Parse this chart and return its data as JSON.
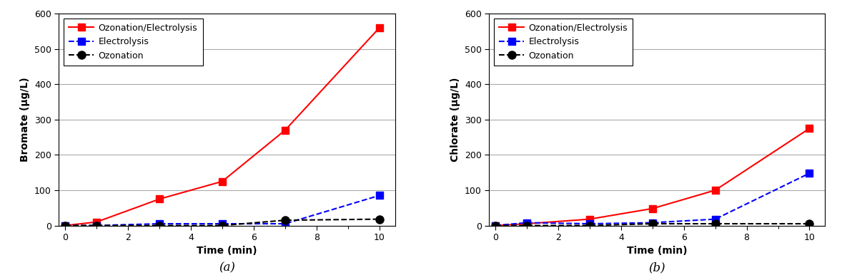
{
  "time": [
    0,
    1,
    3,
    5,
    7,
    10
  ],
  "bromate": {
    "ozonation_electrolysis": [
      0,
      10,
      75,
      125,
      270,
      560
    ],
    "electrolysis": [
      0,
      0,
      5,
      5,
      5,
      85
    ],
    "ozonation": [
      0,
      0,
      0,
      0,
      15,
      18
    ]
  },
  "chlorate": {
    "ozonation_electrolysis": [
      0,
      5,
      18,
      48,
      100,
      275
    ],
    "electrolysis": [
      0,
      8,
      5,
      8,
      18,
      148
    ],
    "ozonation": [
      0,
      0,
      0,
      5,
      5,
      5
    ]
  },
  "legend_labels": [
    "Ozonation/Electrolysis",
    "Electrolysis",
    "Ozonation"
  ],
  "ylabel_a": "Bromate (μg/L)",
  "ylabel_b": "Chlorate (μg/L)",
  "xlabel": "Time (min)",
  "ylim": [
    0,
    600
  ],
  "yticks": [
    0,
    100,
    200,
    300,
    400,
    500,
    600
  ],
  "xlim": [
    -0.2,
    10.5
  ],
  "xticks": [
    0,
    2,
    4,
    6,
    8,
    10
  ],
  "label_a": "(a)",
  "label_b": "(b)",
  "line_colors": [
    "red",
    "blue",
    "black"
  ],
  "line_styles": [
    "-",
    "--",
    "--"
  ],
  "markers": [
    "s",
    "s",
    "o"
  ],
  "marker_sizes": [
    7,
    7,
    8
  ],
  "marker_edge_colors": [
    "red",
    "blue",
    "black"
  ],
  "figsize": [
    11.78,
    3.86
  ],
  "dpi": 100
}
